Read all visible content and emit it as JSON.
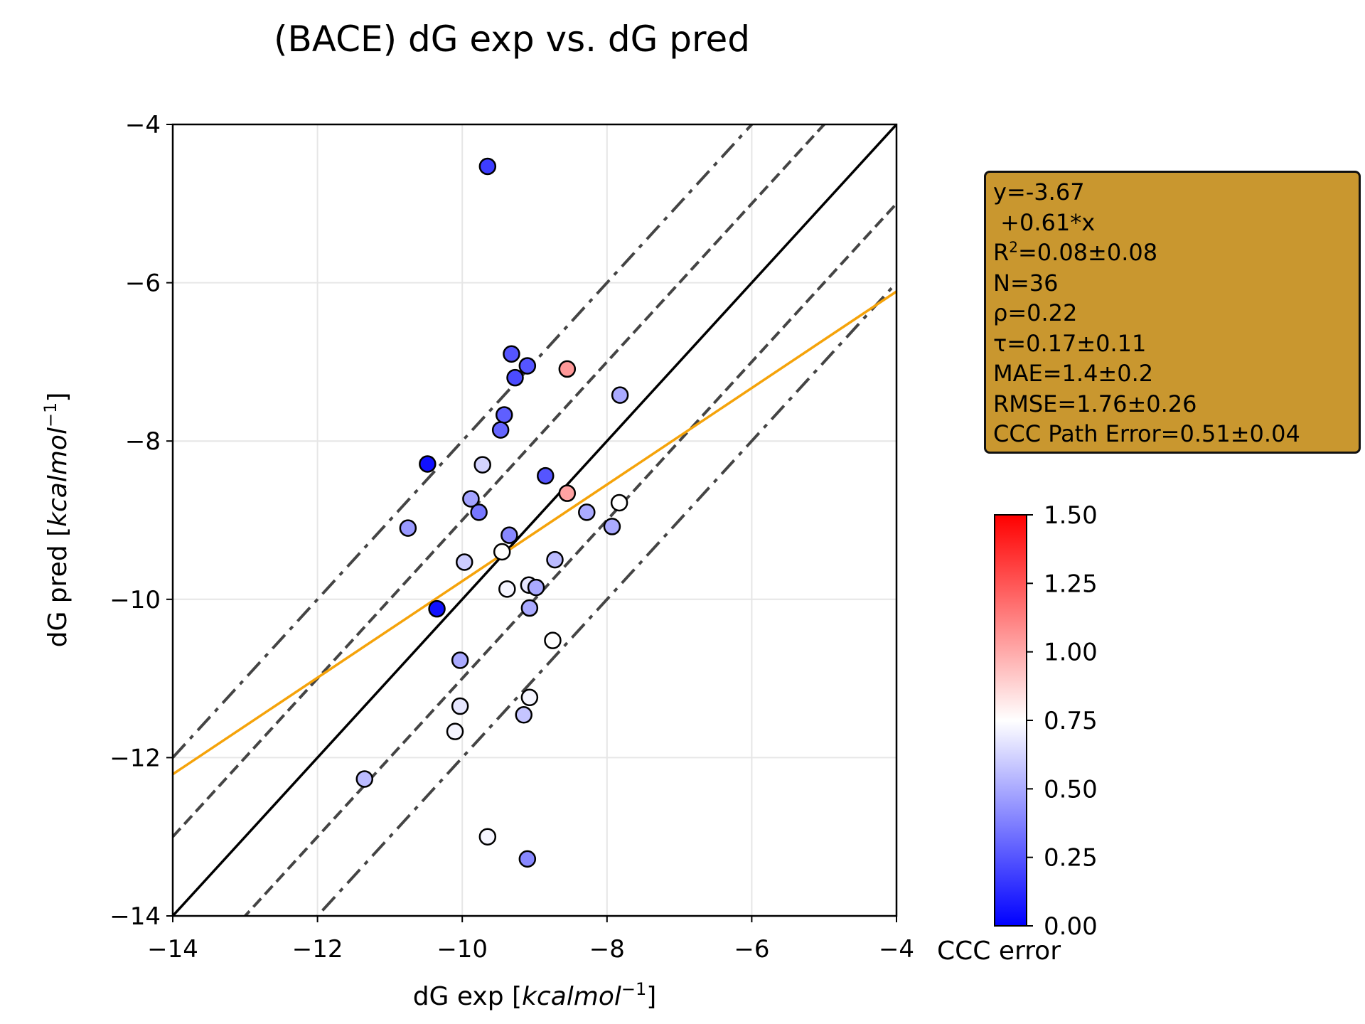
{
  "chart_data": {
    "type": "scatter",
    "title": "(BACE) dG exp vs. dG pred",
    "xlabel": "dG exp [",
    "xlabel_unit": "kcalmol",
    "xlabel_exp": "−1",
    "xlabel_close": "]",
    "ylabel": "dG pred [",
    "ylabel_unit": "kcalmol",
    "ylabel_exp": "−1",
    "ylabel_close": "]",
    "xlim": [
      -14,
      -4
    ],
    "ylim": [
      -14,
      -4
    ],
    "xticks": [
      -14,
      -12,
      -10,
      -8,
      -6,
      -4
    ],
    "yticks": [
      -14,
      -12,
      -10,
      -8,
      -6,
      -4
    ],
    "xtick_labels": [
      "−14",
      "−12",
      "−10",
      "−8",
      "−6",
      "−4"
    ],
    "ytick_labels": [
      "−14",
      "−12",
      "−10",
      "−8",
      "−6",
      "−4"
    ],
    "grid": true,
    "fit_line": {
      "intercept": -3.67,
      "slope": 0.61,
      "color": "#f5a30a"
    },
    "identity_line": {
      "color": "#000000"
    },
    "band_lines": {
      "dashed_offsets": [
        -1,
        1
      ],
      "dashdot_offsets": [
        -2,
        2
      ],
      "color": "#444444"
    },
    "colorbar": {
      "label": "CCC error",
      "range": [
        0.0,
        1.5
      ],
      "ticks": [
        0.0,
        0.25,
        0.5,
        0.75,
        1.0,
        1.25,
        1.5
      ],
      "tick_labels": [
        "0.00",
        "0.25",
        "0.50",
        "0.75",
        "1.00",
        "1.25",
        "1.50"
      ],
      "colormap": [
        "#0000ff",
        "#ffffff",
        "#ff0000"
      ]
    },
    "points": [
      {
        "x": -9.65,
        "y": -4.53,
        "c": 0.18
      },
      {
        "x": -9.32,
        "y": -6.9,
        "c": 0.25
      },
      {
        "x": -9.1,
        "y": -7.05,
        "c": 0.25
      },
      {
        "x": -9.27,
        "y": -7.2,
        "c": 0.22
      },
      {
        "x": -8.55,
        "y": -7.09,
        "c": 1.05
      },
      {
        "x": -7.82,
        "y": -7.42,
        "c": 0.5
      },
      {
        "x": -9.42,
        "y": -7.67,
        "c": 0.28
      },
      {
        "x": -9.47,
        "y": -7.86,
        "c": 0.3
      },
      {
        "x": -10.48,
        "y": -8.29,
        "c": 0.05
      },
      {
        "x": -9.72,
        "y": -8.3,
        "c": 0.62
      },
      {
        "x": -8.85,
        "y": -8.44,
        "c": 0.25
      },
      {
        "x": -8.55,
        "y": -8.66,
        "c": 1.02
      },
      {
        "x": -9.88,
        "y": -8.73,
        "c": 0.48
      },
      {
        "x": -9.77,
        "y": -8.9,
        "c": 0.35
      },
      {
        "x": -8.28,
        "y": -8.9,
        "c": 0.5
      },
      {
        "x": -7.83,
        "y": -8.78,
        "c": 0.75
      },
      {
        "x": -10.75,
        "y": -9.1,
        "c": 0.45
      },
      {
        "x": -7.93,
        "y": -9.08,
        "c": 0.5
      },
      {
        "x": -9.35,
        "y": -9.19,
        "c": 0.4
      },
      {
        "x": -9.45,
        "y": -9.4,
        "c": 0.75
      },
      {
        "x": -9.97,
        "y": -9.53,
        "c": 0.6
      },
      {
        "x": -8.72,
        "y": -9.5,
        "c": 0.55
      },
      {
        "x": -9.38,
        "y": -9.87,
        "c": 0.72
      },
      {
        "x": -9.08,
        "y": -9.82,
        "c": 0.68
      },
      {
        "x": -8.98,
        "y": -9.85,
        "c": 0.5
      },
      {
        "x": -10.35,
        "y": -10.12,
        "c": 0.05
      },
      {
        "x": -9.07,
        "y": -10.11,
        "c": 0.5
      },
      {
        "x": -8.75,
        "y": -10.52,
        "c": 0.75
      },
      {
        "x": -10.03,
        "y": -10.77,
        "c": 0.5
      },
      {
        "x": -10.03,
        "y": -11.35,
        "c": 0.68
      },
      {
        "x": -9.07,
        "y": -11.24,
        "c": 0.72
      },
      {
        "x": -9.15,
        "y": -11.46,
        "c": 0.58
      },
      {
        "x": -10.1,
        "y": -11.67,
        "c": 0.72
      },
      {
        "x": -11.35,
        "y": -12.27,
        "c": 0.55
      },
      {
        "x": -9.65,
        "y": -13.0,
        "c": 0.72
      },
      {
        "x": -9.1,
        "y": -13.28,
        "c": 0.4
      }
    ]
  },
  "stats": {
    "line1": "y=-3.67",
    "line2": " +0.61*x",
    "r2_prefix": "R",
    "r2_sup": "2",
    "r2_value": "=0.08±0.08",
    "n": "N=36",
    "rho": "ρ=0.22",
    "tau": "τ=0.17±0.11",
    "mae": "MAE=1.4±0.2",
    "rmse": "RMSE=1.76±0.26",
    "ccc": "CCC Path Error=0.51±0.04"
  }
}
